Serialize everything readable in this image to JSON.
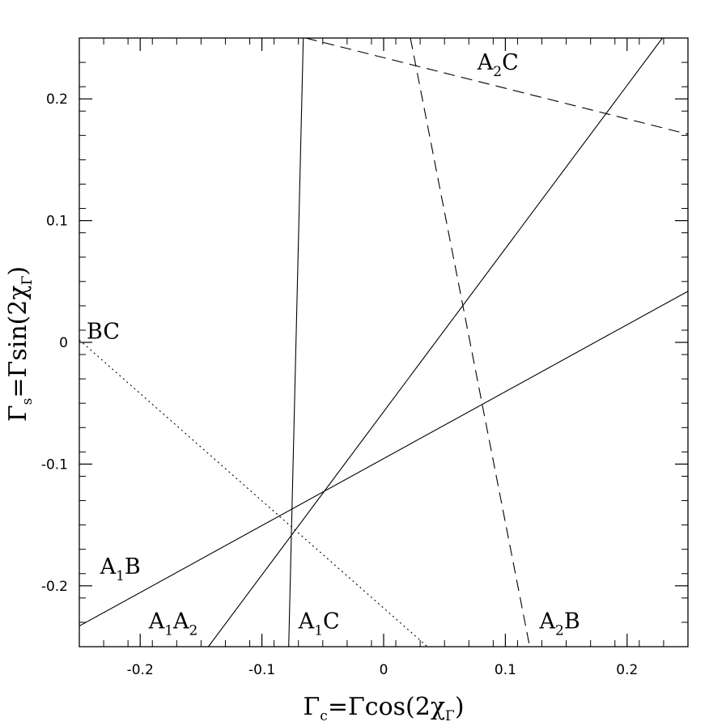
{
  "chart_data": {
    "type": "line",
    "xlim": [
      -0.25,
      0.25
    ],
    "ylim": [
      -0.25,
      0.25
    ],
    "xticks": [
      {
        "value": -0.2,
        "label": "-0.2"
      },
      {
        "value": -0.1,
        "label": "-0.1"
      },
      {
        "value": 0,
        "label": "0"
      },
      {
        "value": 0.1,
        "label": "0.1"
      },
      {
        "value": 0.2,
        "label": "0.2"
      }
    ],
    "yticks": [
      {
        "value": -0.2,
        "label": "-0.2"
      },
      {
        "value": -0.1,
        "label": "-0.1"
      },
      {
        "value": 0,
        "label": "0"
      },
      {
        "value": 0.1,
        "label": "0.1"
      },
      {
        "value": 0.2,
        "label": "0.2"
      }
    ],
    "minor_tick_step": 0.02,
    "grid": false,
    "xlabel": {
      "main": "Γ",
      "sub": "c",
      "rest": "=Γcos(2χ",
      "sub2": "Γ",
      "close": ")"
    },
    "ylabel": {
      "main": "Γ",
      "sub": "s",
      "rest": "=Γsin(2χ",
      "sub2": "Γ",
      "close": ")"
    },
    "series": [
      {
        "label_main": "A",
        "label_sub": "1",
        "label_rest": "B",
        "style": "solid",
        "points": [
          [
            -0.25,
            -0.233
          ],
          [
            0.25,
            0.042
          ]
        ],
        "label_at": [
          -0.233,
          -0.19
        ]
      },
      {
        "label_main": "A",
        "label_sub": "1",
        "label_rest": "A",
        "label_sub2": "2",
        "style": "solid",
        "points": [
          [
            -0.144,
            -0.25
          ],
          [
            0.229,
            0.25
          ]
        ],
        "label_at": [
          -0.193,
          -0.235
        ]
      },
      {
        "label_main": "A",
        "label_sub": "1",
        "label_rest": "C",
        "style": "solid",
        "points": [
          [
            -0.066,
            0.25
          ],
          [
            -0.078,
            -0.25
          ]
        ],
        "label_at": [
          -0.07,
          -0.235
        ]
      },
      {
        "label_main": "A",
        "label_sub": "2",
        "label_rest": "B",
        "style": "dashed",
        "points": [
          [
            0.022,
            0.25
          ],
          [
            0.12,
            -0.25
          ]
        ],
        "label_at": [
          0.128,
          -0.235
        ]
      },
      {
        "label_main": "A",
        "label_sub": "2",
        "label_rest": "C",
        "style": "dashed",
        "points": [
          [
            -0.064,
            0.25
          ],
          [
            0.25,
            0.171
          ]
        ],
        "label_at": [
          0.077,
          0.224
        ]
      },
      {
        "label_main": "BC",
        "style": "dotted",
        "points": [
          [
            -0.25,
            0.002
          ],
          [
            0.036,
            -0.25
          ]
        ],
        "label_at": [
          -0.244,
          0.003
        ]
      }
    ]
  }
}
